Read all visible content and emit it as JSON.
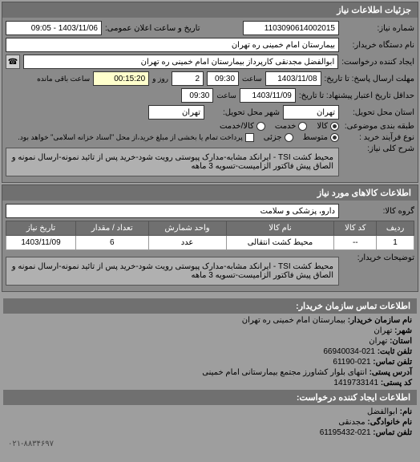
{
  "main_header": "جزئیات اطلاعات نیاز",
  "request_number": {
    "label": "شماره نیاز:",
    "value": "1103090614002015"
  },
  "public_announce": {
    "label": "تاریخ و ساعت اعلان عمومی:",
    "value": "1403/11/06 - 09:05"
  },
  "org_name": {
    "label": "نام دستگاه خریدار:",
    "value": "بیمارستان امام خمینی ره  تهران"
  },
  "requester": {
    "label": "ایجاد کننده درخواست:",
    "value": "ابوالفضل مجدنقی کارپرداز بیمارستان امام خمینی ره  تهران"
  },
  "buyer_contact_btn": "اطلاعات تماس خریدار",
  "deadline_send": {
    "label": "مهلت ارسال پاسخ: تا تاریخ:",
    "date": "1403/11/08",
    "time_label": "ساعت",
    "time": "09:30",
    "days": "2",
    "days_label": "روز و",
    "remain": "00:15:20",
    "remain_label": "ساعت باقی مانده"
  },
  "deadline_valid": {
    "label": "حداقل تاریخ اعتبار پیشنهاد: تا تاریخ:",
    "date": "1403/11/09",
    "time_label": "ساعت",
    "time": "09:30"
  },
  "delivery_state": {
    "label": "استان محل تحویل:",
    "value": "تهران"
  },
  "delivery_city": {
    "label": "شهر محل تحویل:",
    "value": "تهران"
  },
  "item_class": {
    "label": "طبقه بندی موضوعی:",
    "options": [
      {
        "label": "کالا",
        "checked": true
      },
      {
        "label": "خدمت",
        "checked": false
      },
      {
        "label": "کالا/خدمت",
        "checked": false
      }
    ]
  },
  "process_type": {
    "label": "نوع فرآیند خرید :",
    "options": [
      {
        "label": "متوسط",
        "checked": true
      },
      {
        "label": "جزئی",
        "checked": false
      }
    ],
    "note_checkbox": "پرداخت تمام یا بخشی از مبلغ خرید،از محل \"اسناد خزانه اسلامی\" خواهد بود."
  },
  "need_desc": {
    "label": "شرح کلی نیاز:",
    "text": "محیط کشت TSI - ایرانکد مشابه-مدارک پیوستی رویت شود-خرید پس از تائید نمونه-ارسال نمونه و الصاق پیش فاکتور الزامیست-تسویه 3 ماهه"
  },
  "items_header": "اطلاعات کالاهای مورد نیاز",
  "goods_group": {
    "label": "گروه کالا:",
    "value": "دارو، پزشکی و سلامت"
  },
  "table": {
    "headers": [
      "ردیف",
      "کد کالا",
      "نام کالا",
      "واحد شمارش",
      "تعداد / مقدار",
      "تاریخ نیاز"
    ],
    "rows": [
      [
        "1",
        "--",
        "محیط کشت انتقالی",
        "عدد",
        "6",
        "1403/11/09"
      ]
    ]
  },
  "buyer_notes": {
    "label": "توضیحات خریدار:",
    "text": "محیط کشت TSI - ایرانکد مشابه-مدارک پیوستی رویت شود-خرید پس از تائید نمونه-ارسال نمونه و الصاق پیش فاکتور الزامیست-تسویه 3 ماهه"
  },
  "contact_buyer_header": "اطلاعات تماس سازمان خریدار:",
  "contact_buyer": [
    {
      "label": "نام سازمان خریدار:",
      "value": "بیمارستان امام خمینی ره تهران"
    },
    {
      "label": "شهر:",
      "value": "تهران"
    },
    {
      "label": "استان:",
      "value": "تهران"
    },
    {
      "label": "تلفن ثابت:",
      "value": "021-66940034"
    },
    {
      "label": "تلفن تماس:",
      "value": "021-61190"
    },
    {
      "label": "آدرس پستی:",
      "value": "انتهای بلوار کشاورز مجتمع بیمارستانی امام خمینی"
    },
    {
      "label": "کد پستی:",
      "value": "1419733141"
    }
  ],
  "contact_requester_header": "اطلاعات ایجاد کننده درخواست:",
  "contact_requester": [
    {
      "label": "نام:",
      "value": "ابوالفضل"
    },
    {
      "label": "نام خانوادگی:",
      "value": "مجدنقی"
    },
    {
      "label": "تلفن تماس:",
      "value": "021-61195432"
    }
  ],
  "footer_phone": "۰۲۱-۸۸۳۴۶۹۷"
}
